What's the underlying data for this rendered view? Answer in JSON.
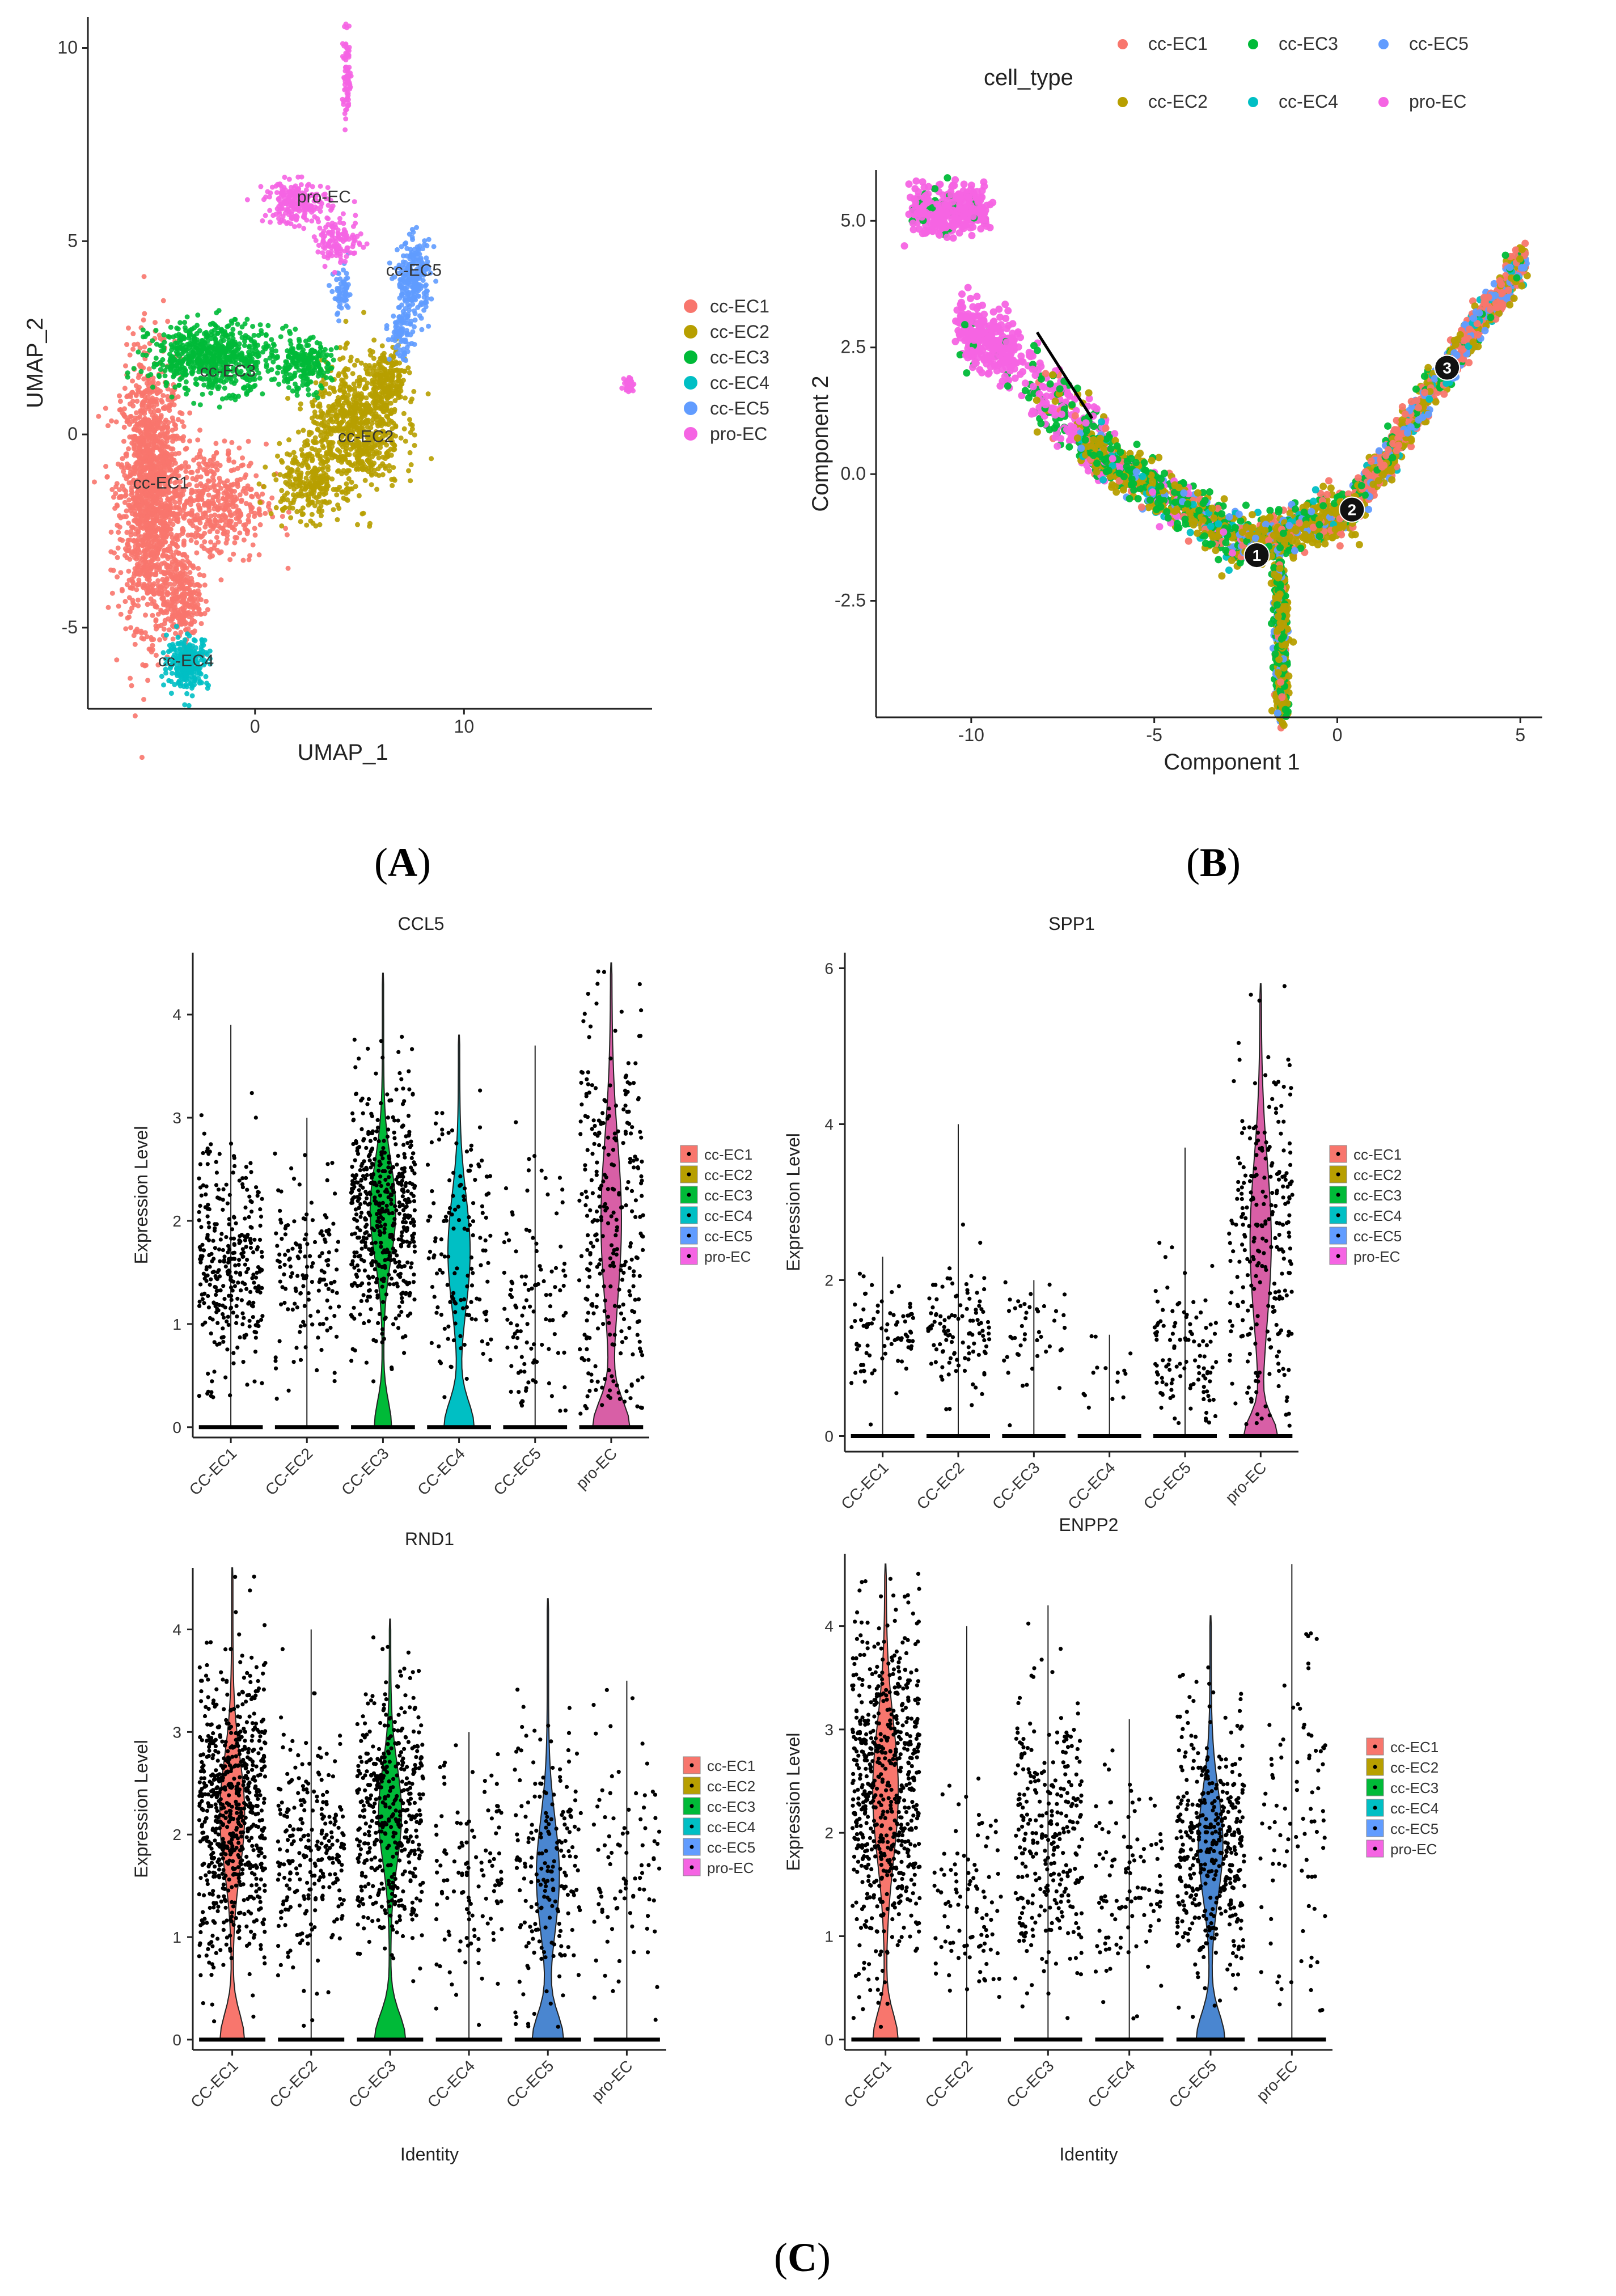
{
  "colors": {
    "cc-EC1": "#F8766D",
    "cc-EC2": "#B79F00",
    "cc-EC3": "#00BA38",
    "cc-EC4": "#00BFC4",
    "cc-EC5": "#619CFF",
    "pro-EC": "#F564E3",
    "violin_pro": "#D85FA6",
    "violin_ec5": "#4A86D0"
  },
  "panel_labels": {
    "A": "A",
    "B": "B",
    "C": "C"
  },
  "chart_data": [
    {
      "id": "A",
      "type": "scatter",
      "title": "",
      "xlabel": "UMAP_1",
      "ylabel": "UMAP_2",
      "xlim": [
        -8,
        19
      ],
      "ylim": [
        -7.1,
        10.8
      ],
      "xticks": [
        0,
        10
      ],
      "yticks": [
        -5,
        0,
        5,
        10
      ],
      "legend": [
        "cc-EC1",
        "cc-EC2",
        "cc-EC3",
        "cc-EC4",
        "cc-EC5",
        "pro-EC"
      ],
      "legend_position": "right",
      "clusters": [
        {
          "name": "cc-EC1",
          "label": "cc-EC1",
          "label_at": [
            -4.5,
            -1.4
          ],
          "regions": [
            [
              -5,
              -1.5,
              1.3,
              3.1,
              500
            ],
            [
              -2,
              -1.8,
              2.3,
              1.4,
              150
            ],
            [
              -3.5,
              -4.3,
              0.8,
              1.0,
              80
            ]
          ]
        },
        {
          "name": "cc-EC2",
          "label": "cc-EC2",
          "label_at": [
            5.3,
            -0.2
          ],
          "regions": [
            [
              4.8,
              0.2,
              2.0,
              1.5,
              240
            ],
            [
              2.5,
              -1.2,
              1.5,
              0.9,
              80
            ],
            [
              6.4,
              1.4,
              0.8,
              0.7,
              60
            ]
          ]
        },
        {
          "name": "cc-EC3",
          "label": "cc-EC3",
          "label_at": [
            -1.3,
            1.5
          ],
          "regions": [
            [
              -2,
              2.0,
              2.7,
              0.8,
              220
            ],
            [
              2.3,
              1.8,
              1.2,
              0.6,
              70
            ]
          ]
        },
        {
          "name": "cc-EC4",
          "label": "cc-EC4",
          "label_at": [
            -3.3,
            -6.0
          ],
          "regions": [
            [
              -3.2,
              -5.9,
              0.9,
              0.6,
              90
            ]
          ]
        },
        {
          "name": "cc-EC5",
          "label": "cc-EC5",
          "label_at": [
            7.6,
            4.1
          ],
          "regions": [
            [
              7.6,
              4.0,
              0.7,
              0.9,
              80
            ],
            [
              7.0,
              2.6,
              0.5,
              0.6,
              30
            ],
            [
              4.2,
              3.6,
              0.4,
              0.6,
              20
            ]
          ]
        },
        {
          "name": "pro-EC",
          "label": "pro-EC",
          "label_at": [
            3.3,
            6.0
          ],
          "regions": [
            [
              2.0,
              6.0,
              1.4,
              0.5,
              70
            ],
            [
              4.0,
              5.0,
              1.0,
              0.5,
              40
            ],
            [
              4.4,
              9.2,
              0.2,
              1.0,
              25
            ],
            [
              17.9,
              1.3,
              0.2,
              0.2,
              12
            ]
          ]
        }
      ]
    },
    {
      "id": "B",
      "type": "scatter",
      "title": "",
      "xlabel": "Component 1",
      "ylabel": "Component 2",
      "xlim": [
        -12.6,
        5.6
      ],
      "ylim": [
        -4.8,
        6.0
      ],
      "xticks": [
        -10,
        -5,
        0,
        5
      ],
      "yticks": [
        -2.5,
        0.0,
        2.5,
        5.0
      ],
      "ytick_labels": [
        "-2.5",
        "0.0",
        "2.5",
        "5.0"
      ],
      "legend_title": "cell_type",
      "legend": [
        "cc-EC1",
        "cc-EC3",
        "cc-EC5",
        "cc-EC2",
        "cc-EC4",
        "pro-EC"
      ],
      "legend_position": "top",
      "branch_points": [
        {
          "label": "1",
          "x": -2.2,
          "y": -1.6
        },
        {
          "label": "2",
          "x": 0.4,
          "y": -0.7
        },
        {
          "label": "3",
          "x": 3.0,
          "y": 2.1
        }
      ],
      "trajectory": [
        [
          -8.2,
          2.8
        ],
        [
          -6.7,
          1.1
        ]
      ]
    },
    {
      "id": "CCL5",
      "type": "violin",
      "title": "CCL5",
      "xlabel": "",
      "ylabel": "Expression Level",
      "ylim": [
        -0.1,
        4.6
      ],
      "yticks": [
        0,
        1,
        2,
        3,
        4
      ],
      "categories": [
        "CC-EC1",
        "CC-EC2",
        "CC-EC3",
        "CC-EC4",
        "CC-EC5",
        "pro-EC"
      ],
      "legend": [
        "cc-EC1",
        "cc-EC2",
        "cc-EC3",
        "cc-EC4",
        "cc-EC5",
        "pro-EC"
      ],
      "series": [
        {
          "group": "CC-EC1",
          "max": 3.9,
          "zero_frac": 0.0,
          "points": 320,
          "center": 1.6,
          "spread": 0.55,
          "color_key": null
        },
        {
          "group": "CC-EC2",
          "max": 3.0,
          "zero_frac": 0.0,
          "points": 150,
          "center": 1.5,
          "spread": 0.45,
          "color_key": null
        },
        {
          "group": "CC-EC3",
          "max": 4.4,
          "zero_frac": 0.25,
          "points": 520,
          "center": 2.1,
          "spread": 0.6,
          "color_key": "cc-EC3"
        },
        {
          "group": "CC-EC4",
          "max": 3.8,
          "zero_frac": 0.45,
          "points": 140,
          "center": 1.7,
          "spread": 0.7,
          "color_key": "cc-EC4"
        },
        {
          "group": "CC-EC5",
          "max": 3.7,
          "zero_frac": 0.0,
          "points": 110,
          "center": 1.3,
          "spread": 0.7,
          "color_key": null
        },
        {
          "group": "pro-EC",
          "max": 4.5,
          "zero_frac": 0.55,
          "points": 300,
          "center": 2.0,
          "spread": 1.0,
          "color_key": "violin_pro"
        }
      ]
    },
    {
      "id": "SPP1",
      "type": "violin",
      "title": "SPP1",
      "xlabel": "",
      "ylabel": "Expression Level",
      "ylim": [
        -0.2,
        6.2
      ],
      "yticks": [
        0,
        2,
        4,
        6
      ],
      "categories": [
        "CC-EC1",
        "CC-EC2",
        "CC-EC3",
        "CC-EC4",
        "CC-EC5",
        "pro-EC"
      ],
      "legend": [
        "cc-EC1",
        "cc-EC2",
        "cc-EC3",
        "cc-EC4",
        "cc-EC5",
        "pro-EC"
      ],
      "series": [
        {
          "group": "CC-EC1",
          "max": 2.3,
          "zero_frac": 0.0,
          "points": 80,
          "center": 1.2,
          "spread": 0.35,
          "color_key": null
        },
        {
          "group": "CC-EC2",
          "max": 4.0,
          "zero_frac": 0.0,
          "points": 110,
          "center": 1.3,
          "spread": 0.45,
          "color_key": null
        },
        {
          "group": "CC-EC3",
          "max": 2.0,
          "zero_frac": 0.0,
          "points": 45,
          "center": 1.3,
          "spread": 0.35,
          "color_key": null
        },
        {
          "group": "CC-EC4",
          "max": 1.3,
          "zero_frac": 0.0,
          "points": 15,
          "center": 0.8,
          "spread": 0.3,
          "color_key": null
        },
        {
          "group": "CC-EC5",
          "max": 3.7,
          "zero_frac": 0.0,
          "points": 110,
          "center": 1.1,
          "spread": 0.55,
          "color_key": null
        },
        {
          "group": "pro-EC",
          "max": 5.8,
          "zero_frac": 0.5,
          "points": 260,
          "center": 2.5,
          "spread": 1.3,
          "color_key": "violin_pro"
        }
      ]
    },
    {
      "id": "RND1",
      "type": "violin",
      "title": "RND1",
      "xlabel": "Identity",
      "ylabel": "Expression Level",
      "ylim": [
        -0.1,
        4.6
      ],
      "yticks": [
        0,
        1,
        2,
        3,
        4
      ],
      "categories": [
        "CC-EC1",
        "CC-EC2",
        "CC-EC3",
        "CC-EC4",
        "CC-EC5",
        "pro-EC"
      ],
      "legend": [
        "cc-EC1",
        "cc-EC2",
        "cc-EC3",
        "cc-EC4",
        "cc-EC5",
        "pro-EC"
      ],
      "series": [
        {
          "group": "CC-EC1",
          "max": 4.6,
          "zero_frac": 0.35,
          "points": 700,
          "center": 2.2,
          "spread": 0.7,
          "color_key": "cc-EC1"
        },
        {
          "group": "CC-EC2",
          "max": 4.0,
          "zero_frac": 0.0,
          "points": 260,
          "center": 1.9,
          "spread": 0.6,
          "color_key": null
        },
        {
          "group": "CC-EC3",
          "max": 4.1,
          "zero_frac": 0.45,
          "points": 450,
          "center": 2.2,
          "spread": 0.6,
          "color_key": "cc-EC3"
        },
        {
          "group": "CC-EC4",
          "max": 3.0,
          "zero_frac": 0.0,
          "points": 120,
          "center": 1.6,
          "spread": 0.55,
          "color_key": null
        },
        {
          "group": "CC-EC5",
          "max": 4.3,
          "zero_frac": 0.45,
          "points": 200,
          "center": 1.6,
          "spread": 0.7,
          "color_key": "violin_ec5"
        },
        {
          "group": "pro-EC",
          "max": 3.5,
          "zero_frac": 0.0,
          "points": 90,
          "center": 1.6,
          "spread": 0.65,
          "color_key": null
        }
      ]
    },
    {
      "id": "ENPP2",
      "type": "violin",
      "title": "ENPP2",
      "xlabel": "Identity",
      "ylabel": "Expression Level",
      "ylim": [
        -0.1,
        4.7
      ],
      "yticks": [
        0,
        1,
        2,
        3,
        4
      ],
      "categories": [
        "CC-EC1",
        "CC-EC2",
        "CC-EC3",
        "CC-EC4",
        "CC-EC5",
        "pro-EC"
      ],
      "legend": [
        "cc-EC1",
        "cc-EC2",
        "cc-EC3",
        "cc-EC4",
        "cc-EC5",
        "pro-EC"
      ],
      "series": [
        {
          "group": "CC-EC1",
          "max": 4.6,
          "zero_frac": 0.35,
          "points": 650,
          "center": 2.4,
          "spread": 0.85,
          "color_key": "cc-EC1"
        },
        {
          "group": "CC-EC2",
          "max": 4.0,
          "zero_frac": 0.0,
          "points": 100,
          "center": 1.4,
          "spread": 0.5,
          "color_key": null
        },
        {
          "group": "CC-EC3",
          "max": 4.2,
          "zero_frac": 0.0,
          "points": 300,
          "center": 1.9,
          "spread": 0.7,
          "color_key": null
        },
        {
          "group": "CC-EC4",
          "max": 3.1,
          "zero_frac": 0.0,
          "points": 110,
          "center": 1.4,
          "spread": 0.5,
          "color_key": null
        },
        {
          "group": "CC-EC5",
          "max": 4.1,
          "zero_frac": 0.4,
          "points": 420,
          "center": 1.9,
          "spread": 0.65,
          "color_key": "violin_ec5"
        },
        {
          "group": "pro-EC",
          "max": 4.6,
          "zero_frac": 0.0,
          "points": 90,
          "center": 2.2,
          "spread": 1.1,
          "color_key": null
        }
      ]
    }
  ]
}
